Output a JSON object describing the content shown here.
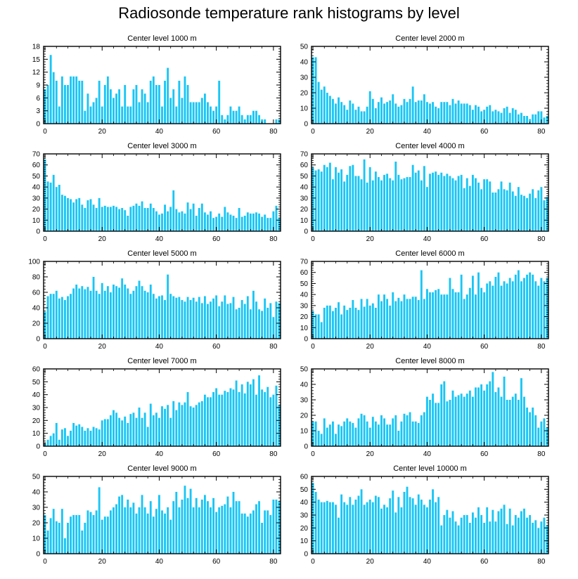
{
  "title": "Radiosonde temperature rank histograms by level",
  "chart_data": [
    {
      "type": "bar",
      "title": "Center level 1000 m",
      "ylim": [
        0,
        18
      ],
      "yticks": [
        0,
        3,
        6,
        9,
        12,
        15,
        18
      ],
      "xlim": [
        -0.5,
        82.5
      ],
      "xticks": [
        0,
        20,
        40,
        60,
        80
      ],
      "values": [
        8,
        9,
        16,
        12,
        10,
        4,
        11,
        9,
        9,
        11,
        11,
        11,
        10,
        10,
        3,
        7,
        4,
        5,
        6,
        10,
        4,
        9,
        11,
        8,
        6,
        7,
        8,
        4,
        9,
        4,
        4,
        8,
        9,
        5,
        8,
        7,
        5,
        10,
        11,
        9,
        9,
        4,
        10,
        13,
        6,
        8,
        4,
        10,
        6,
        11,
        9,
        5,
        5,
        5,
        5,
        6,
        7,
        5,
        4,
        3,
        4,
        10,
        2,
        1,
        2,
        4,
        3,
        3,
        4,
        2,
        1,
        2,
        2,
        3,
        3,
        2,
        1,
        1,
        0,
        0,
        0,
        1,
        1
      ]
    },
    {
      "type": "bar",
      "title": "Center level 2000 m",
      "ylim": [
        0,
        50
      ],
      "yticks": [
        0,
        10,
        20,
        30,
        40,
        50
      ],
      "xlim": [
        -0.5,
        82.5
      ],
      "xticks": [
        0,
        20,
        40,
        60,
        80
      ],
      "values": [
        43,
        43,
        27,
        22,
        24,
        20,
        18,
        16,
        13,
        17,
        14,
        12,
        9,
        15,
        13,
        9,
        11,
        8,
        8,
        11,
        21,
        16,
        10,
        14,
        17,
        13,
        14,
        15,
        19,
        13,
        11,
        12,
        16,
        14,
        16,
        24,
        14,
        15,
        15,
        19,
        14,
        13,
        14,
        11,
        10,
        14,
        14,
        14,
        12,
        16,
        13,
        15,
        13,
        13,
        13,
        12,
        9,
        12,
        11,
        8,
        9,
        11,
        12,
        8,
        9,
        8,
        7,
        10,
        11,
        7,
        10,
        9,
        6,
        7,
        5,
        5,
        3,
        6,
        6,
        8,
        8,
        4,
        5
      ]
    },
    {
      "type": "bar",
      "title": "Center level 3000 m",
      "ylim": [
        0,
        70
      ],
      "yticks": [
        0,
        10,
        20,
        30,
        40,
        50,
        60,
        70
      ],
      "xlim": [
        -0.5,
        82.5
      ],
      "xticks": [
        0,
        20,
        40,
        60,
        80
      ],
      "values": [
        65,
        45,
        44,
        51,
        40,
        42,
        33,
        32,
        30,
        29,
        26,
        29,
        30,
        24,
        21,
        28,
        29,
        24,
        21,
        30,
        22,
        23,
        22,
        22,
        23,
        22,
        20,
        21,
        19,
        14,
        22,
        23,
        25,
        23,
        27,
        21,
        21,
        25,
        21,
        18,
        15,
        16,
        24,
        18,
        22,
        37,
        20,
        17,
        18,
        16,
        26,
        20,
        25,
        14,
        21,
        25,
        17,
        15,
        18,
        12,
        13,
        16,
        13,
        22,
        17,
        15,
        14,
        12,
        21,
        13,
        14,
        17,
        16,
        16,
        17,
        16,
        13,
        15,
        12,
        12,
        18,
        23,
        12
      ]
    },
    {
      "type": "bar",
      "title": "Center level 4000 m",
      "ylim": [
        0,
        70
      ],
      "yticks": [
        0,
        10,
        20,
        30,
        40,
        50,
        60,
        70
      ],
      "xlim": [
        -0.5,
        82.5
      ],
      "xticks": [
        0,
        20,
        40,
        60,
        80
      ],
      "values": [
        58,
        55,
        56,
        54,
        60,
        58,
        62,
        47,
        58,
        53,
        56,
        45,
        51,
        59,
        60,
        50,
        50,
        47,
        65,
        44,
        58,
        46,
        54,
        49,
        46,
        51,
        52,
        48,
        46,
        63,
        51,
        47,
        48,
        49,
        49,
        60,
        53,
        55,
        46,
        59,
        40,
        52,
        53,
        54,
        51,
        53,
        50,
        52,
        50,
        48,
        46,
        50,
        51,
        39,
        48,
        41,
        51,
        48,
        44,
        38,
        47,
        47,
        45,
        35,
        35,
        38,
        45,
        38,
        37,
        44,
        36,
        32,
        40,
        33,
        32,
        30,
        34,
        38,
        30,
        37,
        40,
        28,
        31
      ]
    },
    {
      "type": "bar",
      "title": "Center level 5000 m",
      "ylim": [
        0,
        100
      ],
      "yticks": [
        0,
        20,
        40,
        60,
        80,
        100
      ],
      "xlim": [
        -0.5,
        82.5
      ],
      "xticks": [
        0,
        20,
        40,
        60,
        80
      ],
      "values": [
        35,
        55,
        58,
        58,
        62,
        52,
        54,
        50,
        55,
        58,
        65,
        70,
        65,
        68,
        64,
        67,
        62,
        80,
        62,
        58,
        72,
        62,
        68,
        60,
        70,
        68,
        66,
        78,
        70,
        65,
        58,
        62,
        68,
        75,
        68,
        62,
        60,
        70,
        58,
        52,
        55,
        56,
        50,
        83,
        58,
        55,
        53,
        54,
        50,
        48,
        54,
        50,
        53,
        48,
        54,
        46,
        55,
        45,
        48,
        52,
        56,
        42,
        48,
        56,
        45,
        46,
        54,
        38,
        40,
        50,
        45,
        55,
        38,
        62,
        48,
        38,
        36,
        52,
        40,
        46,
        28,
        48,
        46
      ]
    },
    {
      "type": "bar",
      "title": "Center level 6000 m",
      "ylim": [
        0,
        70
      ],
      "yticks": [
        0,
        10,
        20,
        30,
        40,
        50,
        60,
        70
      ],
      "xlim": [
        -0.5,
        82.5
      ],
      "xticks": [
        0,
        20,
        40,
        60,
        80
      ],
      "values": [
        25,
        22,
        22,
        15,
        28,
        30,
        30,
        25,
        28,
        33,
        22,
        30,
        26,
        28,
        35,
        28,
        26,
        36,
        29,
        36,
        30,
        32,
        28,
        40,
        34,
        40,
        36,
        30,
        42,
        34,
        37,
        34,
        40,
        36,
        36,
        38,
        38,
        35,
        62,
        36,
        45,
        42,
        42,
        44,
        45,
        40,
        40,
        40,
        55,
        45,
        42,
        42,
        58,
        36,
        40,
        46,
        57,
        40,
        60,
        46,
        42,
        50,
        52,
        48,
        56,
        60,
        48,
        52,
        50,
        55,
        52,
        58,
        62,
        52,
        55,
        58,
        60,
        58,
        52,
        48,
        55,
        52,
        55
      ]
    },
    {
      "type": "bar",
      "title": "Center level 7000 m",
      "ylim": [
        0,
        60
      ],
      "yticks": [
        0,
        10,
        20,
        30,
        40,
        50,
        60
      ],
      "xlim": [
        -0.5,
        82.5
      ],
      "xticks": [
        0,
        20,
        40,
        60,
        80
      ],
      "values": [
        2,
        5,
        8,
        10,
        18,
        5,
        13,
        14,
        8,
        12,
        18,
        16,
        17,
        15,
        12,
        14,
        12,
        15,
        14,
        13,
        20,
        21,
        21,
        24,
        28,
        26,
        22,
        20,
        23,
        18,
        25,
        26,
        22,
        30,
        22,
        26,
        15,
        33,
        24,
        26,
        22,
        31,
        29,
        32,
        22,
        35,
        28,
        34,
        32,
        34,
        42,
        31,
        30,
        32,
        34,
        35,
        40,
        38,
        38,
        42,
        45,
        40,
        40,
        43,
        42,
        45,
        44,
        51,
        42,
        48,
        41,
        50,
        48,
        52,
        40,
        55,
        44,
        42,
        46,
        38,
        40,
        47,
        32
      ]
    },
    {
      "type": "bar",
      "title": "Center level 8000 m",
      "ylim": [
        0,
        50
      ],
      "yticks": [
        0,
        10,
        20,
        30,
        40,
        50
      ],
      "xlim": [
        -0.5,
        82.5
      ],
      "xticks": [
        0,
        20,
        40,
        60,
        80
      ],
      "values": [
        16,
        16,
        10,
        8,
        18,
        12,
        14,
        16,
        8,
        14,
        13,
        16,
        18,
        16,
        15,
        12,
        18,
        21,
        20,
        16,
        12,
        19,
        16,
        14,
        20,
        18,
        14,
        14,
        18,
        20,
        10,
        16,
        21,
        20,
        22,
        16,
        16,
        15,
        20,
        22,
        32,
        30,
        34,
        28,
        28,
        40,
        42,
        29,
        30,
        36,
        32,
        33,
        34,
        32,
        34,
        36,
        32,
        38,
        38,
        40,
        36,
        40,
        42,
        48,
        35,
        38,
        32,
        45,
        30,
        30,
        32,
        34,
        30,
        44,
        32,
        25,
        22,
        25,
        20,
        12,
        16,
        18,
        12
      ]
    },
    {
      "type": "bar",
      "title": "Center level 9000 m",
      "ylim": [
        0,
        50
      ],
      "yticks": [
        0,
        10,
        20,
        30,
        40,
        50
      ],
      "xlim": [
        -0.5,
        82.5
      ],
      "xticks": [
        0,
        20,
        40,
        60,
        80
      ],
      "values": [
        25,
        15,
        23,
        29,
        21,
        20,
        29,
        10,
        20,
        24,
        25,
        25,
        25,
        15,
        20,
        28,
        27,
        25,
        28,
        43,
        22,
        24,
        24,
        28,
        30,
        32,
        37,
        38,
        30,
        35,
        30,
        33,
        26,
        30,
        38,
        30,
        26,
        34,
        24,
        29,
        38,
        28,
        26,
        30,
        22,
        34,
        40,
        30,
        35,
        44,
        36,
        42,
        30,
        36,
        30,
        35,
        38,
        34,
        30,
        36,
        27,
        30,
        31,
        32,
        37,
        30,
        40,
        34,
        34,
        26,
        26,
        24,
        26,
        28,
        32,
        34,
        20,
        28,
        28,
        25,
        35,
        35,
        34
      ]
    },
    {
      "type": "bar",
      "title": "Center level 10000 m",
      "ylim": [
        0,
        60
      ],
      "yticks": [
        0,
        10,
        20,
        30,
        40,
        50,
        60
      ],
      "xlim": [
        -0.5,
        82.5
      ],
      "xticks": [
        0,
        20,
        40,
        60,
        80
      ],
      "values": [
        55,
        48,
        42,
        40,
        40,
        41,
        40,
        40,
        38,
        28,
        46,
        40,
        38,
        44,
        38,
        42,
        45,
        50,
        38,
        40,
        42,
        40,
        45,
        44,
        35,
        38,
        36,
        43,
        49,
        32,
        44,
        36,
        48,
        52,
        44,
        43,
        38,
        46,
        42,
        38,
        36,
        42,
        50,
        40,
        44,
        22,
        30,
        34,
        28,
        33,
        25,
        22,
        28,
        30,
        30,
        24,
        32,
        28,
        36,
        30,
        24,
        36,
        25,
        34,
        25,
        33,
        35,
        38,
        23,
        35,
        22,
        30,
        28,
        33,
        35,
        28,
        30,
        24,
        26,
        20,
        25,
        28,
        22
      ]
    }
  ]
}
